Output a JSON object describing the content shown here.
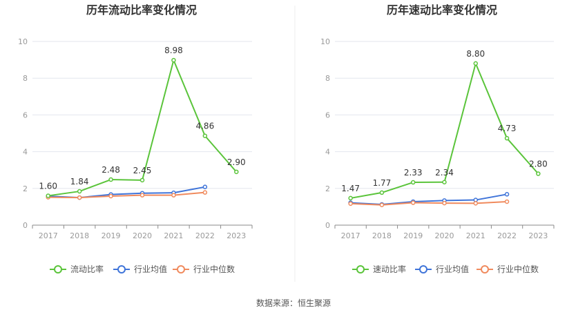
{
  "colors": {
    "main": "#5ac43a",
    "avg": "#3f74d9",
    "median": "#f08a5d",
    "grid": "#e3e6ee",
    "axis": "#999999",
    "text": "#333333"
  },
  "source": "数据来源：恒生聚源",
  "chart_data": [
    {
      "type": "line",
      "title": "历年流动比率变化情况",
      "categories": [
        "2017",
        "2018",
        "2019",
        "2020",
        "2021",
        "2022",
        "2023"
      ],
      "ylim": [
        0,
        10
      ],
      "yticks": [
        "0",
        "2",
        "4",
        "6",
        "8",
        "10"
      ],
      "grid": true,
      "legend_position": "bottom",
      "series": [
        {
          "name": "流动比率",
          "values": [
            1.6,
            1.84,
            2.48,
            2.45,
            8.98,
            4.86,
            2.9
          ],
          "labels": [
            "1.60",
            "1.84",
            "2.48",
            "2.45",
            "8.98",
            "4.86",
            "2.90"
          ]
        },
        {
          "name": "行业均值",
          "values": [
            1.58,
            1.5,
            1.67,
            1.74,
            1.76,
            2.08,
            null
          ]
        },
        {
          "name": "行业中位数",
          "values": [
            1.52,
            1.5,
            1.58,
            1.63,
            1.63,
            1.78,
            null
          ]
        }
      ]
    },
    {
      "type": "line",
      "title": "历年速动比率变化情况",
      "categories": [
        "2017",
        "2018",
        "2019",
        "2020",
        "2021",
        "2022",
        "2023"
      ],
      "ylim": [
        0,
        10
      ],
      "yticks": [
        "0",
        "2",
        "4",
        "6",
        "8",
        "10"
      ],
      "grid": true,
      "legend_position": "bottom",
      "series": [
        {
          "name": "速动比率",
          "values": [
            1.47,
            1.77,
            2.33,
            2.34,
            8.8,
            4.73,
            2.8
          ],
          "labels": [
            "1.47",
            "1.77",
            "2.33",
            "2.34",
            "8.80",
            "4.73",
            "2.80"
          ]
        },
        {
          "name": "行业均值",
          "values": [
            1.22,
            1.13,
            1.28,
            1.34,
            1.37,
            1.68,
            null
          ]
        },
        {
          "name": "行业中位数",
          "values": [
            1.17,
            1.1,
            1.22,
            1.2,
            1.19,
            1.28,
            null
          ]
        }
      ]
    }
  ]
}
